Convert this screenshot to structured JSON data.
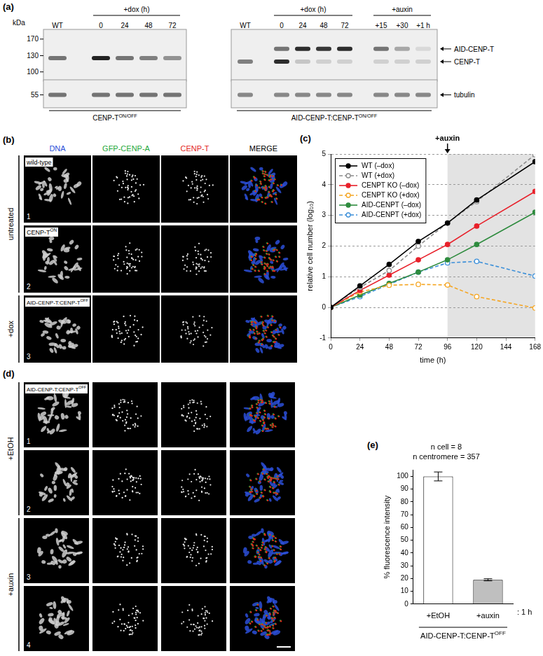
{
  "panels": {
    "a": {
      "label": "(a)",
      "marker_unit": "kDa",
      "markers": [
        170,
        130,
        100,
        55
      ],
      "blots": [
        {
          "caption": {
            "text": "CENP-T",
            "sup": "ON/OFF"
          },
          "lane_groups": [
            {
              "label": null,
              "lanes": [
                "WT"
              ]
            },
            {
              "label": "+dox (h)",
              "lanes": [
                "0",
                "24",
                "48",
                "72"
              ]
            }
          ],
          "bands": [
            {
              "name": null,
              "kDa": 125,
              "intensity": [
                0.6,
                1.0,
                0.6,
                0.55,
                0.45
              ]
            },
            {
              "name": null,
              "kDa": 55,
              "intensity": [
                0.6,
                0.6,
                0.6,
                0.6,
                0.6
              ]
            }
          ]
        },
        {
          "caption": {
            "text": "AID-CENP-T:CENP-T",
            "sup": "ON/OFF"
          },
          "lane_groups": [
            {
              "label": null,
              "lanes": [
                "WT"
              ]
            },
            {
              "label": "+dox (h)",
              "lanes": [
                "0",
                "24",
                "48",
                "72"
              ]
            },
            {
              "label": "+auxin",
              "lanes": [
                "+15",
                "+30",
                "+1 h"
              ]
            }
          ],
          "bands": [
            {
              "name": "AID-CENP-T",
              "kDa": 145,
              "intensity": [
                0,
                0.6,
                0.95,
                0.9,
                0.95,
                0.6,
                0.35,
                0.1
              ]
            },
            {
              "name": "CENP-T",
              "kDa": 118,
              "intensity": [
                0.55,
                0.95,
                0.2,
                0.15,
                0.15,
                0.15,
                0.15,
                0.15
              ]
            },
            {
              "name": "tubulin",
              "kDa": 55,
              "intensity": [
                0.5,
                0.5,
                0.5,
                0.5,
                0.5,
                0.5,
                0.5,
                0.5
              ]
            }
          ]
        }
      ]
    },
    "b": {
      "label": "(b)",
      "columns": [
        {
          "name": "DNA",
          "color": "#2b4fd8"
        },
        {
          "name": "GFP-CENP-A",
          "color": "#1fa83a"
        },
        {
          "name": "CENP-T",
          "color": "#e3241b"
        },
        {
          "name": "MERGE",
          "color": "#000000"
        }
      ],
      "row_groups": [
        {
          "label": "untreated",
          "rows": [
            {
              "number": "1",
              "label": "wild-type"
            },
            {
              "number": "2",
              "label": {
                "text": "CENP-T",
                "sup": "ON"
              }
            }
          ]
        },
        {
          "label": "+dox",
          "rows": [
            {
              "number": "3",
              "label": {
                "text": "AID-CENP-T:CENP-T",
                "sup": "OFF"
              }
            }
          ]
        }
      ]
    },
    "d": {
      "label": "(d)",
      "row_groups": [
        {
          "label": "+EtOH",
          "rows": [
            {
              "number": "1",
              "label": {
                "text": "AID-CENP-T:CENP-T",
                "sup": "OFF"
              }
            },
            {
              "number": "2",
              "label": null
            }
          ]
        },
        {
          "label": "+auxin",
          "rows": [
            {
              "number": "3",
              "label": null
            },
            {
              "number": "4",
              "label": null
            }
          ]
        }
      ]
    }
  },
  "chart_data": [
    {
      "type": "line",
      "panel_label": "(c)",
      "x_label": "time (h)",
      "y_label": "relative cell number (log₁₀)",
      "x": [
        0,
        24,
        48,
        72,
        96,
        120,
        168
      ],
      "xlim": [
        0,
        168
      ],
      "xticks": [
        0,
        24,
        48,
        72,
        96,
        120,
        144,
        168
      ],
      "ylim": [
        -1,
        5
      ],
      "yticks": [
        -1,
        0,
        1,
        2,
        3,
        4,
        5
      ],
      "grid": "y",
      "legend": "top-left",
      "annotations": [
        {
          "text": "+auxin",
          "x": 96
        }
      ],
      "shaded_range": [
        96,
        168
      ],
      "series": [
        {
          "name": "WT (–dox)",
          "color": "#000000",
          "marker": "circle",
          "line_style": "solid",
          "values": [
            0,
            0.7,
            1.4,
            2.15,
            2.75,
            3.5,
            4.75
          ]
        },
        {
          "name": "WT (+dox)",
          "color": "#8c8c8c",
          "marker": "open circle",
          "line_style": "dashed",
          "values": [
            0,
            0.65,
            1.2,
            2.0,
            2.75,
            3.45,
            4.98
          ]
        },
        {
          "name": "CENPT KO (–dox)",
          "color": "#e8202a",
          "marker": "circle",
          "line_style": "solid",
          "values": [
            0,
            0.55,
            1.05,
            1.55,
            2.05,
            2.65,
            3.78
          ]
        },
        {
          "name": "CENPT KO (+dox)",
          "color": "#f5a623",
          "marker": "open circle",
          "line_style": "dashed",
          "values": [
            0,
            0.5,
            0.72,
            0.75,
            0.73,
            0.35,
            -0.02
          ]
        },
        {
          "name": "AID-CENPT (–dox)",
          "color": "#2e8b3e",
          "marker": "circle",
          "line_style": "solid",
          "values": [
            0,
            0.4,
            0.78,
            1.15,
            1.55,
            2.05,
            3.1
          ]
        },
        {
          "name": "AID-CENPT (+dox)",
          "color": "#3b8fd9",
          "marker": "open circle",
          "line_style": "dashed",
          "values": [
            0,
            0.35,
            0.75,
            1.15,
            1.45,
            1.5,
            1.02
          ]
        }
      ]
    },
    {
      "type": "bar",
      "panel_label": "(e)",
      "title": "n cell = 8",
      "subtitle": "n centromere = 357",
      "y_label": "% fluorescence intensity",
      "x_label": {
        "text": "AID-CENP-T:CENP-T",
        "sup": "OFF"
      },
      "annotations": [
        {
          "text": ": 1 h"
        }
      ],
      "categories": [
        "+EtOH",
        "+auxin"
      ],
      "values": [
        100,
        19
      ],
      "errors": [
        3.5,
        0.8
      ],
      "colors": [
        "#ffffff",
        "#bfbfbf"
      ],
      "ylim": [
        0,
        105
      ],
      "yticks": [
        0,
        10,
        20,
        30,
        40,
        50,
        60,
        70,
        80,
        90,
        100
      ],
      "grid": false
    }
  ]
}
